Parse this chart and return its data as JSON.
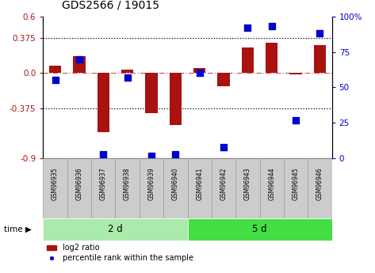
{
  "title": "GDS2566 / 19015",
  "samples": [
    "GSM96935",
    "GSM96936",
    "GSM96937",
    "GSM96938",
    "GSM96939",
    "GSM96940",
    "GSM96941",
    "GSM96942",
    "GSM96943",
    "GSM96944",
    "GSM96945",
    "GSM96946"
  ],
  "log2_ratio": [
    0.08,
    0.18,
    -0.62,
    0.04,
    -0.42,
    -0.55,
    0.05,
    -0.14,
    0.27,
    0.32,
    -0.01,
    0.3
  ],
  "percentile_rank": [
    55,
    70,
    3,
    57,
    2,
    3,
    60,
    8,
    92,
    93,
    27,
    88
  ],
  "groups": [
    {
      "label": "2 d",
      "start": 0,
      "end": 6,
      "color": "#aaeaaa"
    },
    {
      "label": "5 d",
      "start": 6,
      "end": 12,
      "color": "#44dd44"
    }
  ],
  "bar_color": "#aa1111",
  "dot_color": "#0000cc",
  "ylim_left": [
    -0.9,
    0.6
  ],
  "ylim_right": [
    0,
    100
  ],
  "yticks_left": [
    -0.9,
    -0.375,
    0.0,
    0.375,
    0.6
  ],
  "yticks_right": [
    0,
    25,
    50,
    75,
    100
  ],
  "hlines": [
    0.375,
    -0.375
  ],
  "zero_line": 0.0,
  "background_color": "#ffffff",
  "bar_width": 0.5,
  "dot_size": 28,
  "sample_box_color": "#cccccc",
  "sample_box_edge": "#999999"
}
